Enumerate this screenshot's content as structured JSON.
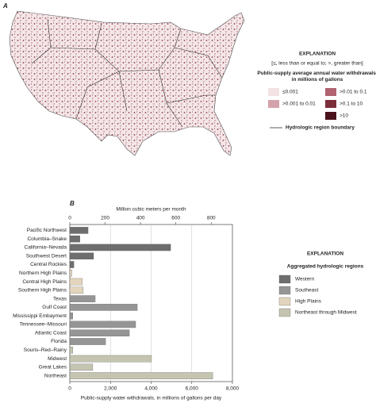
{
  "panel_a": {
    "label": "A",
    "explanation": {
      "title": "EXPLANATION",
      "note": "[≤, less than or equal to; >, greater than]",
      "heading": "Public-supply average annual water withdrawals, in millions of gallons",
      "classes": [
        {
          "label": "≤0.001",
          "color": "#f3e2e4"
        },
        {
          "label": ">0.001 to 0.01",
          "color": "#d4a2aa"
        },
        {
          "label": ">0.01 to 0.1",
          "color": "#b06270"
        },
        {
          "label": ">0.1 to 10",
          "color": "#7a2e3a"
        },
        {
          "label": ">10",
          "color": "#4a121c"
        }
      ],
      "boundary": "Hydrologic region boundary"
    }
  },
  "chart_data": {
    "type": "bar",
    "label": "B",
    "x_label": "Public-supply water withdrawals, in millions of gallons per day",
    "x2_label": "Million cubic meters per month",
    "legend_title": "EXPLANATION",
    "legend_subtitle": "Aggregated hydrologic regions",
    "categories": [
      "Pacific Northwest",
      "Columbia–Snake",
      "California–Nevada",
      "Southwest Desert",
      "Central Rockies",
      "Northern High Plains",
      "Central High Plains",
      "Southern High Plains",
      "Texas",
      "Gulf Coast",
      "Mississippi Embayment",
      "Tennessee–Missouri",
      "Atlantic Coast",
      "Florida",
      "Souris–Red–Rainy",
      "Midwest",
      "Great Lakes",
      "Northeast"
    ],
    "series": [
      {
        "name": "Western",
        "color": "#6e6e6e",
        "values": [
          900,
          500,
          4960,
          1170,
          200,
          null,
          null,
          null,
          null,
          null,
          null,
          null,
          null,
          null,
          null,
          null,
          null,
          null
        ]
      },
      {
        "name": "Southeast",
        "color": "#959595",
        "values": [
          null,
          null,
          null,
          null,
          null,
          null,
          null,
          null,
          1250,
          3320,
          150,
          3240,
          2930,
          1760,
          null,
          null,
          null,
          null
        ]
      },
      {
        "name": "High Plains",
        "color": "#e3d5bd",
        "values": [
          null,
          null,
          null,
          null,
          null,
          100,
          620,
          660,
          null,
          null,
          null,
          null,
          null,
          null,
          null,
          null,
          null,
          null
        ]
      },
      {
        "name": "Northeast through Midwest",
        "color": "#c4c4b0",
        "values": [
          null,
          null,
          null,
          null,
          null,
          null,
          null,
          null,
          null,
          null,
          null,
          null,
          null,
          null,
          150,
          4020,
          1130,
          7030
        ]
      }
    ],
    "xlim": [
      0,
      8000
    ],
    "xticks": [
      0,
      {
        "value": 2000,
        "label": "2,000"
      },
      {
        "value": 4000,
        "label": "4,000"
      },
      {
        "value": 6000,
        "label": "6,000"
      },
      {
        "value": 8000,
        "label": "8,000"
      }
    ],
    "x2lim": [
      0,
      920
    ],
    "x2ticks": [
      0,
      200,
      400,
      600,
      800
    ],
    "grid": true
  }
}
